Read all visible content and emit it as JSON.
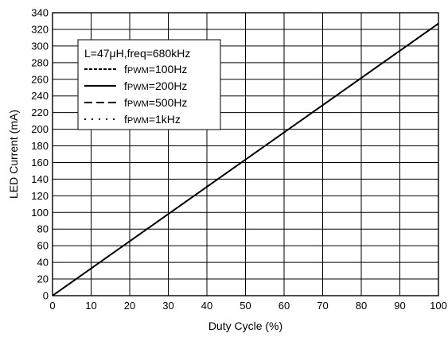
{
  "chart_data": {
    "type": "line",
    "title": "",
    "xlabel": "Duty Cycle (%)",
    "ylabel": "LED Current (mA)",
    "xlim": [
      0,
      100
    ],
    "ylim": [
      0,
      340
    ],
    "x_ticks": [
      0,
      10,
      20,
      30,
      40,
      50,
      60,
      70,
      80,
      90,
      100
    ],
    "y_ticks": [
      0,
      20,
      40,
      60,
      80,
      100,
      120,
      140,
      160,
      180,
      200,
      220,
      240,
      260,
      280,
      300,
      320,
      340
    ],
    "grid": true,
    "legend_position": "top-left",
    "legend_title": "L=47μH,freq=680kHz",
    "series": [
      {
        "name": "fPWM=100Hz",
        "style": "dotted",
        "x": [
          0,
          100
        ],
        "y": [
          0,
          327
        ]
      },
      {
        "name": "fPWM=200Hz",
        "style": "solid",
        "x": [
          0,
          100
        ],
        "y": [
          0,
          327
        ]
      },
      {
        "name": "fPWM=500Hz",
        "style": "dashed",
        "x": [
          0,
          100
        ],
        "y": [
          0,
          327
        ]
      },
      {
        "name": "fPWM=1kHz",
        "style": "dot",
        "x": [
          0,
          100
        ],
        "y": [
          0,
          327
        ]
      }
    ]
  },
  "legend": {
    "title": "L=47μH,freq=680kHz",
    "items": [
      {
        "f": "f",
        "sub": "PWM",
        "val": "=100Hz"
      },
      {
        "f": "f",
        "sub": "PWM",
        "val": "=200Hz"
      },
      {
        "f": "f",
        "sub": "PWM",
        "val": "=500Hz"
      },
      {
        "f": "f",
        "sub": "PWM",
        "val": "=1kHz"
      }
    ]
  },
  "colors": {
    "line": "#000000",
    "grid": "#000000",
    "background": "#ffffff"
  }
}
